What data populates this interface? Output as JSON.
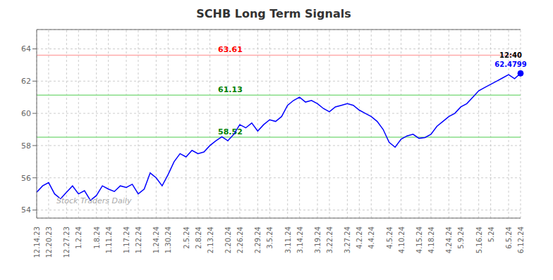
{
  "chart_data": {
    "type": "line",
    "title": "SCHB Long Term Signals",
    "categories": [
      "12.14.23",
      null,
      "12.20.23",
      null,
      null,
      "12.27.23",
      null,
      "1.2.24",
      null,
      null,
      "1.8.24",
      null,
      "1.11.24",
      null,
      null,
      "1.17.24",
      null,
      "1.22.24",
      null,
      null,
      "1.24.24",
      null,
      "1.30.24",
      null,
      null,
      "2.5.24",
      null,
      "2.8.24",
      null,
      "2.13.24",
      null,
      null,
      "2.20.24",
      null,
      "2.26.24",
      null,
      null,
      "2.29.24",
      null,
      "3.5.24",
      null,
      null,
      "3.11.24",
      null,
      "3.14.24",
      null,
      null,
      "3.19.24",
      null,
      "3.22.24",
      null,
      null,
      "3.27.24",
      null,
      "4.2.24",
      null,
      "4.4.24",
      null,
      null,
      "4.5.24",
      null,
      "4.10.24",
      null,
      null,
      "4.15.24",
      null,
      "4.18.24",
      null,
      null,
      "4.24.24",
      null,
      "5.9.24",
      null,
      null,
      "5.16.24",
      null,
      "5.24",
      null,
      null,
      "6.5.24",
      null,
      "6.12.24"
    ],
    "values": [
      55.1,
      55.5,
      55.7,
      55.0,
      54.7,
      55.1,
      55.5,
      55.0,
      55.2,
      54.6,
      54.9,
      55.5,
      55.3,
      55.15,
      55.5,
      55.4,
      55.6,
      55.0,
      55.3,
      56.3,
      56.0,
      55.5,
      56.2,
      57.0,
      57.5,
      57.3,
      57.7,
      57.5,
      57.6,
      58.0,
      58.3,
      58.55,
      58.3,
      58.7,
      59.3,
      59.1,
      59.4,
      58.9,
      59.3,
      59.6,
      59.5,
      59.8,
      60.5,
      60.8,
      61.0,
      60.7,
      60.8,
      60.6,
      60.3,
      60.1,
      60.4,
      60.5,
      60.6,
      60.5,
      60.2,
      60.0,
      59.8,
      59.5,
      59.0,
      58.2,
      57.9,
      58.4,
      58.6,
      58.7,
      58.45,
      58.5,
      58.7,
      59.2,
      59.5,
      59.8,
      60.0,
      60.4,
      60.6,
      61.0,
      61.4,
      61.6,
      61.8,
      62.0,
      62.2,
      62.4,
      62.15,
      62.4799
    ],
    "color": "blue",
    "ylim": [
      53.5,
      65.2
    ],
    "yticks": [
      54,
      56,
      58,
      60,
      62,
      64
    ],
    "grid": true,
    "hlines": [
      {
        "value": 63.61,
        "label": "63.61",
        "color": "#ffaaaa",
        "label_color": "red"
      },
      {
        "value": 61.13,
        "label": "61.13",
        "color": "#88dd88",
        "label_color": "green"
      },
      {
        "value": 58.52,
        "label": "58.52",
        "color": "#88dd88",
        "label_color": "green"
      }
    ],
    "last_point": {
      "label": "12:40",
      "value": 62.4799,
      "color": "blue"
    },
    "watermark": "Stock Traders Daily"
  }
}
